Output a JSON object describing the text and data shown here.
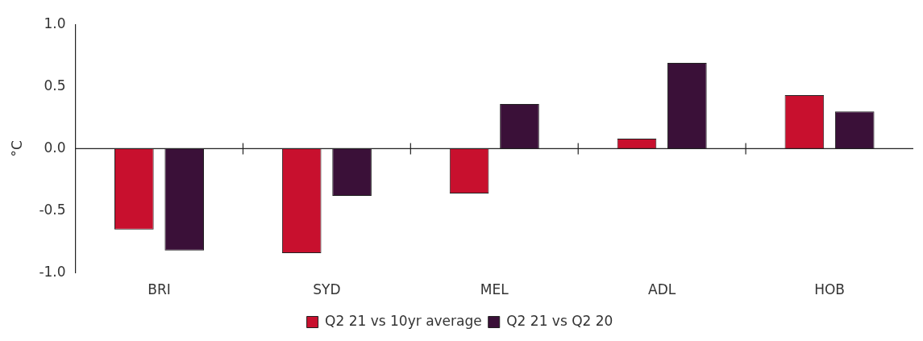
{
  "chart_data": {
    "type": "bar",
    "ylabel": "°C",
    "categories": [
      "BRI",
      "SYD",
      "MEL",
      "ADL",
      "HOB"
    ],
    "series": [
      {
        "name": "Q2 21 vs 10yr average",
        "color": "#c8102e",
        "values": [
          -0.65,
          -0.84,
          -0.36,
          0.08,
          0.43
        ]
      },
      {
        "name": "Q2 21 vs Q2 20",
        "color": "#3a1038",
        "values": [
          -0.82,
          -0.38,
          0.36,
          0.69,
          0.3
        ]
      }
    ],
    "ylim": [
      -1,
      1
    ],
    "yticks": [
      {
        "value": -1,
        "label": "-1.0"
      },
      {
        "value": -0.5,
        "label": "-0.5"
      },
      {
        "value": 0,
        "label": "0.0"
      },
      {
        "value": 0.5,
        "label": "0.5"
      },
      {
        "value": 1,
        "label": "1.0"
      }
    ],
    "legend": "bottom"
  }
}
